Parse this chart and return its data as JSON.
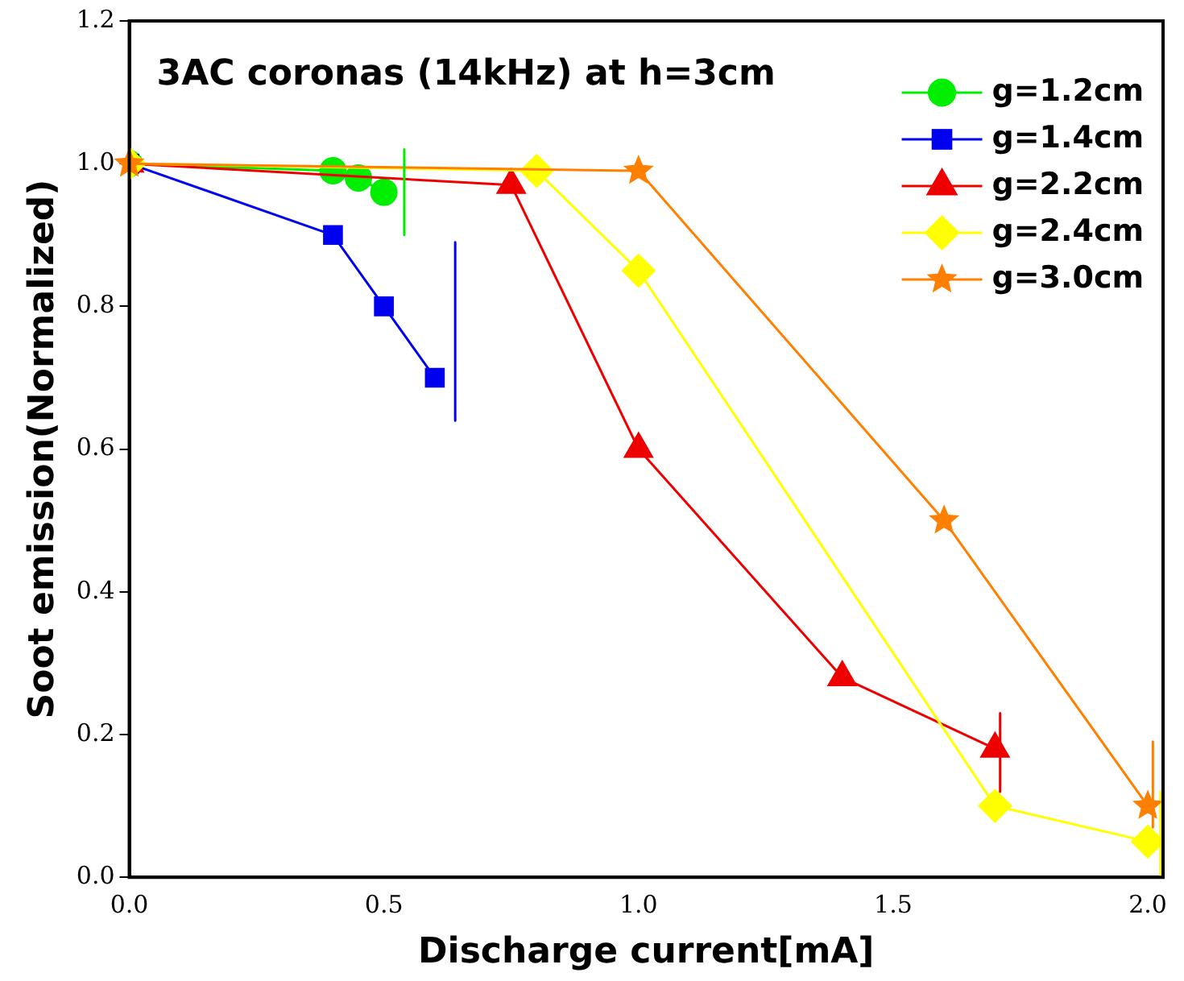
{
  "chart_data": {
    "type": "line",
    "title": "3AC coronas (14kHz) at h=3cm",
    "xlabel": "Discharge current[mA]",
    "ylabel": "Soot emission(Normalized)",
    "xlim": [
      0,
      2.03
    ],
    "xticks": [
      {
        "value": 0,
        "label": "0.0"
      },
      {
        "value": 0.5,
        "label": "0.5"
      },
      {
        "value": 1,
        "label": "1.0"
      },
      {
        "value": 1.5,
        "label": "1.5"
      },
      {
        "value": 2,
        "label": "2.0"
      }
    ],
    "ylim": [
      0,
      1.2
    ],
    "yticks": [
      {
        "value": 0,
        "label": "0.0"
      },
      {
        "value": 0.2,
        "label": "0.2"
      },
      {
        "value": 0.4,
        "label": "0.4"
      },
      {
        "value": 0.6,
        "label": "0.6"
      },
      {
        "value": 0.8,
        "label": "0.8"
      },
      {
        "value": 1,
        "label": "1.0"
      },
      {
        "value": 1.2,
        "label": "1.2"
      }
    ],
    "grid": false,
    "legend": "top right",
    "line_style": "solid",
    "series": [
      {
        "name": "g=1.2cm",
        "color": "#00ee00",
        "marker": "circle",
        "x": [
          0,
          0.4,
          0.45,
          0.5
        ],
        "values": [
          1,
          0.99,
          0.98,
          0.96
        ]
      },
      {
        "name": "g=1.4cm",
        "color": "#0000ee",
        "marker": "square",
        "x": [
          0,
          0.4,
          0.5,
          0.6
        ],
        "values": [
          1,
          0.9,
          0.8,
          0.7
        ]
      },
      {
        "name": "g=2.2cm",
        "color": "#ee0000",
        "marker": "triangle",
        "x": [
          0,
          0.75,
          1,
          1.4,
          1.7
        ],
        "values": [
          1,
          0.97,
          0.6,
          0.28,
          0.18
        ]
      },
      {
        "name": "g=2.4cm",
        "color": "#ffff00",
        "marker": "diamond",
        "x": [
          0,
          0.8,
          1,
          1.7,
          2
        ],
        "values": [
          1,
          0.99,
          0.85,
          0.1,
          0.05
        ]
      },
      {
        "name": "g=3.0cm",
        "color": "#ff8000",
        "marker": "star",
        "x": [
          0,
          1,
          1.6,
          2
        ],
        "values": [
          1,
          0.99,
          0.5,
          0.1
        ]
      },
      {
        "color": "#00ee00",
        "marker": "none",
        "x": [
          0.54,
          0.54
        ],
        "values": [
          1.02,
          0.9
        ]
      },
      {
        "color": "#0000ee",
        "marker": "none",
        "x": [
          0.64,
          0.64
        ],
        "values": [
          0.89,
          0.64
        ]
      },
      {
        "color": "#ee0000",
        "marker": "none",
        "x": [
          1.71,
          1.71
        ],
        "values": [
          0.23,
          0.12
        ]
      },
      {
        "color": "#ff8000",
        "marker": "none",
        "x": [
          2.01,
          2.01
        ],
        "values": [
          0.19,
          0.07
        ]
      },
      {
        "color": "#ffff00",
        "marker": "none",
        "x": [
          2.025,
          2.025
        ],
        "values": [
          0.12,
          0
        ]
      }
    ]
  }
}
